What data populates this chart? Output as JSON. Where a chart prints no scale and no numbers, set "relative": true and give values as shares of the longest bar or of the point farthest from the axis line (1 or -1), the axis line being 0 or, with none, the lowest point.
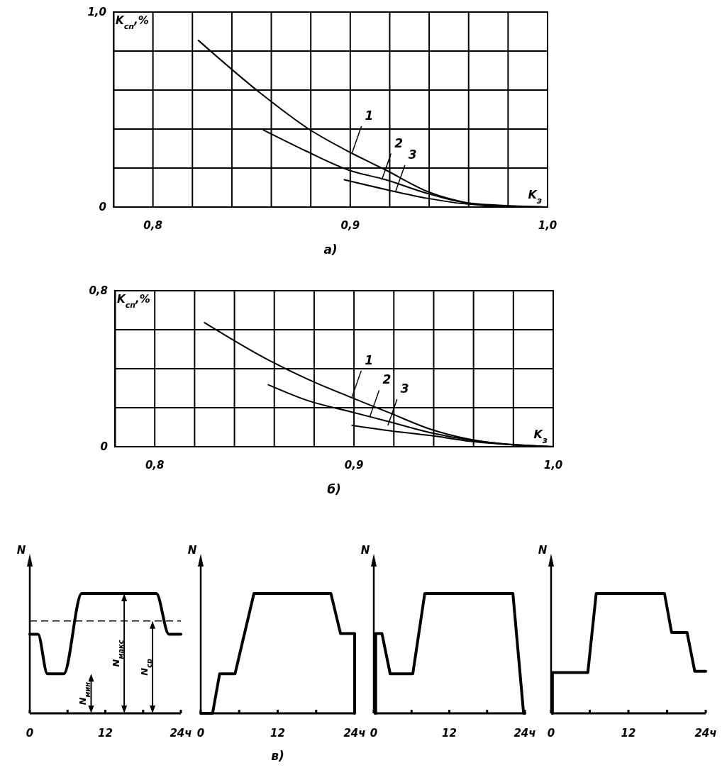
{
  "chart_data": [
    {
      "type": "line",
      "ylabel": "K$_{сп}$,%",
      "xlabel": "K$_{з}$",
      "xlim": [
        0.78,
        1.0
      ],
      "ylim": [
        0,
        1.0
      ],
      "xticks": [
        {
          "value": 0.8,
          "label": "0,8"
        },
        {
          "value": 0.82,
          "label": null
        },
        {
          "value": 0.84,
          "label": null
        },
        {
          "value": 0.86,
          "label": null
        },
        {
          "value": 0.88,
          "label": null
        },
        {
          "value": 0.9,
          "label": "0,9"
        },
        {
          "value": 0.92,
          "label": null
        },
        {
          "value": 0.94,
          "label": null
        },
        {
          "value": 0.96,
          "label": null
        },
        {
          "value": 0.98,
          "label": null
        },
        {
          "value": 1.0,
          "label": "1,0"
        }
      ],
      "yticks": [
        {
          "value": 0,
          "label": "0"
        },
        {
          "value": 0.2,
          "label": null
        },
        {
          "value": 0.4,
          "label": null
        },
        {
          "value": 0.6,
          "label": null
        },
        {
          "value": 0.8,
          "label": null
        },
        {
          "value": 1.0,
          "label": "1,0"
        }
      ],
      "grid": true,
      "series": [
        {
          "color": "#000000",
          "x": [
            0.823,
            0.855,
            0.879,
            0.9,
            0.918,
            0.939,
            0.96,
            0.979,
            1.0
          ],
          "values": [
            0.855,
            0.58,
            0.4,
            0.28,
            0.19,
            0.08,
            0.02,
            0.0,
            0.0
          ]
        },
        {
          "color": "#000000",
          "x": [
            0.856,
            0.877,
            0.899,
            0.918,
            0.939,
            0.96,
            1.0
          ],
          "values": [
            0.395,
            0.29,
            0.19,
            0.14,
            0.07,
            0.02,
            0.0
          ]
        },
        {
          "color": "#000000",
          "x": [
            0.897,
            0.918,
            0.939,
            0.96,
            1.0
          ],
          "values": [
            0.14,
            0.09,
            0.045,
            0.015,
            0.0
          ]
        }
      ],
      "annotations": [
        {
          "text": "1",
          "x": 0.901,
          "y": 0.28
        },
        {
          "text": "2",
          "x": 0.916,
          "y": 0.14
        },
        {
          "text": "3",
          "x": 0.923,
          "y": 0.08
        }
      ],
      "title": "а)"
    },
    {
      "type": "line",
      "ylabel": "K$_{сп}$,%",
      "xlabel": "K$_{з}$",
      "xlim": [
        0.78,
        1.0
      ],
      "ylim": [
        0,
        0.8
      ],
      "xticks": [
        {
          "value": 0.8,
          "label": "0,8"
        },
        {
          "value": 0.82,
          "label": null
        },
        {
          "value": 0.84,
          "label": null
        },
        {
          "value": 0.86,
          "label": null
        },
        {
          "value": 0.88,
          "label": null
        },
        {
          "value": 0.9,
          "label": "0,9"
        },
        {
          "value": 0.92,
          "label": null
        },
        {
          "value": 0.94,
          "label": null
        },
        {
          "value": 0.96,
          "label": null
        },
        {
          "value": 0.98,
          "label": null
        },
        {
          "value": 1.0,
          "label": "1,0"
        }
      ],
      "yticks": [
        {
          "value": 0,
          "label": "0"
        },
        {
          "value": 0.2,
          "label": null
        },
        {
          "value": 0.4,
          "label": null
        },
        {
          "value": 0.6,
          "label": null
        },
        {
          "value": 0.8,
          "label": "0,8"
        }
      ],
      "grid": true,
      "series": [
        {
          "color": "#000000",
          "x": [
            0.825,
            0.857,
            0.877,
            0.898,
            0.918,
            0.938,
            0.959,
            0.98,
            1.0
          ],
          "values": [
            0.636,
            0.445,
            0.345,
            0.255,
            0.173,
            0.091,
            0.036,
            0.009,
            0.0
          ]
        },
        {
          "color": "#000000",
          "x": [
            0.857,
            0.877,
            0.898,
            0.918,
            0.938,
            0.959,
            1.0
          ],
          "values": [
            0.318,
            0.236,
            0.18,
            0.127,
            0.073,
            0.033,
            0.0
          ]
        },
        {
          "color": "#000000",
          "x": [
            0.899,
            0.918,
            0.938,
            0.959,
            1.0
          ],
          "values": [
            0.109,
            0.082,
            0.058,
            0.027,
            0.0
          ]
        }
      ],
      "annotations": [
        {
          "text": "1",
          "x": 0.899,
          "y": 0.255
        },
        {
          "text": "2",
          "x": 0.908,
          "y": 0.155
        },
        {
          "text": "3",
          "x": 0.917,
          "y": 0.109
        }
      ],
      "title": "б)"
    },
    {
      "type": "line",
      "relative": true,
      "ylabel": "N",
      "xlim": [
        0,
        24
      ],
      "tick_labels": "x",
      "xticks": [
        {
          "value": 0,
          "label": "0"
        },
        {
          "value": 6,
          "label": null
        },
        {
          "value": 12,
          "label": "12"
        },
        {
          "value": 18,
          "label": null
        },
        {
          "value": 24,
          "label": "24ч"
        }
      ],
      "series": [
        {
          "color": "#000000",
          "x": [
            0,
            1.3,
            2.8,
            5.4,
            8.25,
            20.1,
            22.1,
            24
          ],
          "values": [
            0.66,
            0.66,
            0.33,
            0.33,
            1,
            1,
            0.66,
            0.66
          ]
        }
      ],
      "ref_lines": [
        {
          "axis": "y",
          "value": 0.77,
          "line_style": "dashed",
          "color": "#000000"
        }
      ],
      "annotations": [
        "N$_{мин}$",
        "N$_{макс}$",
        "N$_{ср}$"
      ]
    },
    {
      "type": "line",
      "relative": true,
      "ylabel": "N",
      "xlim": [
        0,
        24
      ],
      "tick_labels": "x",
      "xticks": [
        {
          "value": 0,
          "label": "0"
        },
        {
          "value": 6,
          "label": null
        },
        {
          "value": 12,
          "label": "12"
        },
        {
          "value": 18,
          "label": null
        },
        {
          "value": 24,
          "label": "24ч"
        }
      ],
      "series": [
        {
          "color": "#000000",
          "x": [
            0,
            1.85,
            2.95,
            5.35,
            8.3,
            20.3,
            21.8,
            24,
            24
          ],
          "values": [
            0,
            0,
            0.33,
            0.33,
            1,
            1,
            0.665,
            0.665,
            0
          ]
        }
      ],
      "title": "в)"
    },
    {
      "type": "line",
      "relative": true,
      "ylabel": "N",
      "xlim": [
        0,
        24
      ],
      "tick_labels": "x",
      "xticks": [
        {
          "value": 0,
          "label": "0"
        },
        {
          "value": 6,
          "label": null
        },
        {
          "value": 12,
          "label": "12"
        },
        {
          "value": 18,
          "label": null
        },
        {
          "value": 24,
          "label": "24ч"
        }
      ],
      "series": [
        {
          "color": "#000000",
          "x": [
            0.3,
            0.3,
            1.3,
            2.6,
            6.2,
            8.1,
            22.1,
            23.8,
            24
          ],
          "values": [
            0,
            0.665,
            0.665,
            0.33,
            0.33,
            1,
            1,
            0,
            0
          ]
        }
      ]
    },
    {
      "type": "line",
      "relative": true,
      "ylabel": "N",
      "xlim": [
        0,
        24
      ],
      "tick_labels": "x",
      "xticks": [
        {
          "value": 0,
          "label": "0"
        },
        {
          "value": 6,
          "label": null
        },
        {
          "value": 12,
          "label": "12"
        },
        {
          "value": 18,
          "label": null
        },
        {
          "value": 24,
          "label": "24ч"
        }
      ],
      "series": [
        {
          "color": "#000000",
          "x": [
            0.2,
            0.2,
            5.7,
            7.0,
            17.6,
            18.7,
            21.1,
            22.3,
            24
          ],
          "values": [
            0,
            0.34,
            0.34,
            1,
            1,
            0.675,
            0.675,
            0.35,
            0.35
          ]
        }
      ]
    }
  ]
}
